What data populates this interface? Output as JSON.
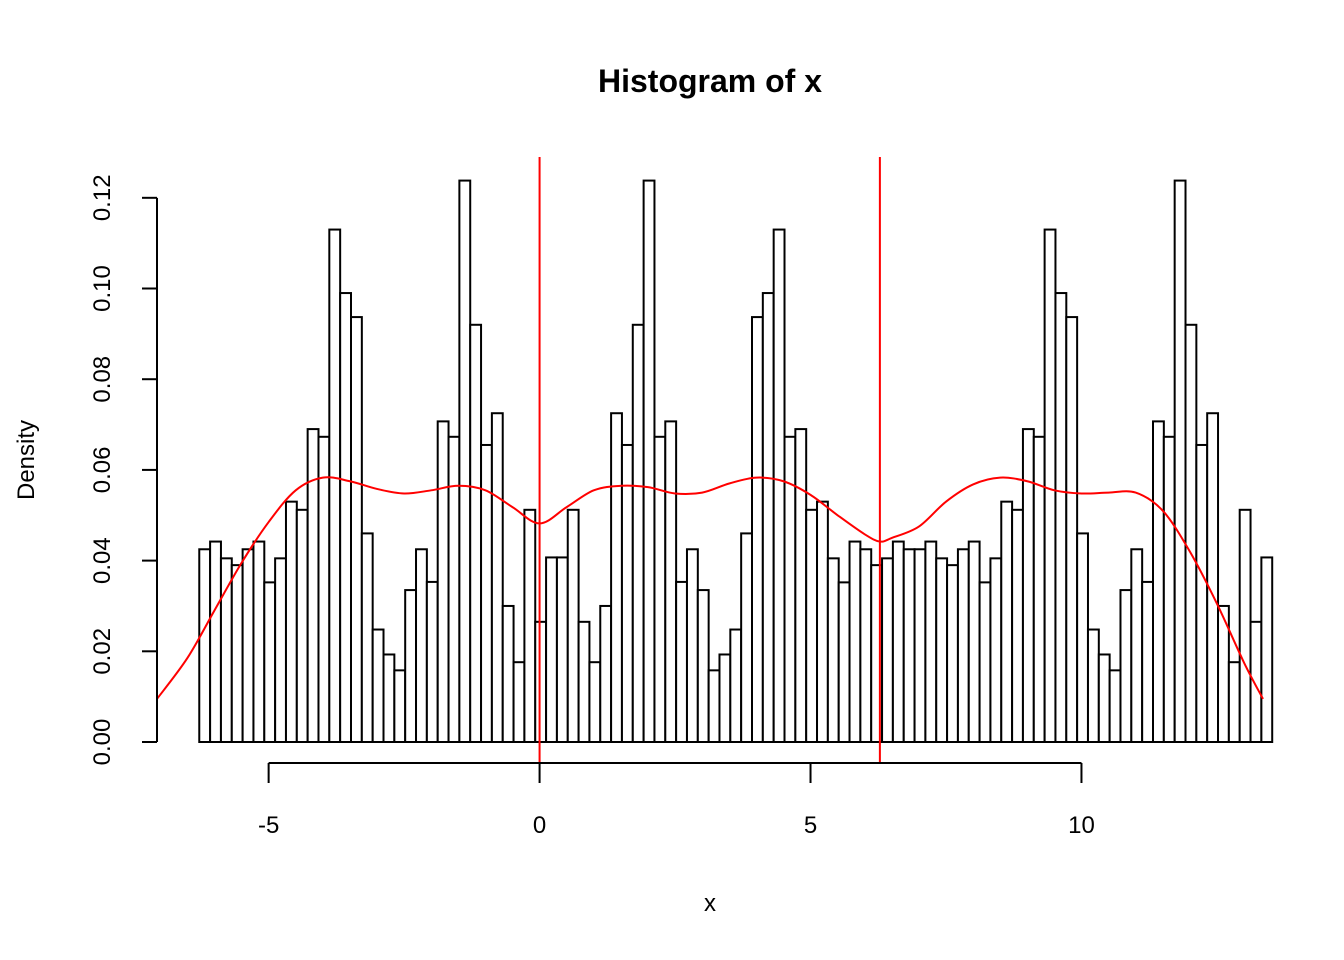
{
  "chart_data": {
    "type": "bar",
    "title": "Histogram of x",
    "xlabel": "x",
    "ylabel": "Density",
    "xlim": [
      -7.06,
      13.35
    ],
    "ylim": [
      0,
      0.129
    ],
    "x_ticks": [
      -5,
      0,
      5,
      10
    ],
    "x_tick_labels": [
      "-5",
      "0",
      "5",
      "10"
    ],
    "y_ticks": [
      0,
      0.02,
      0.04,
      0.06,
      0.08,
      0.1,
      0.12
    ],
    "y_tick_labels": [
      "0.00",
      "0.02",
      "0.04",
      "0.06",
      "0.08",
      "0.10",
      "0.12"
    ],
    "grid": false,
    "histogram": {
      "bin_start": -6.28,
      "bin_width": 0.2,
      "density": [
        0.0425,
        0.0442,
        0.0405,
        0.039,
        0.0425,
        0.0442,
        0.0352,
        0.0405,
        0.053,
        0.0512,
        0.069,
        0.0673,
        0.113,
        0.099,
        0.0937,
        0.046,
        0.0248,
        0.0193,
        0.0158,
        0.0335,
        0.0425,
        0.0353,
        0.0707,
        0.0673,
        0.1238,
        0.092,
        0.0655,
        0.0725,
        0.03,
        0.0176,
        0.0512,
        0.0265,
        0.0407,
        0.0407,
        0.0512,
        0.0265,
        0.0176,
        0.03,
        0.0725,
        0.0655,
        0.092,
        0.1238,
        0.0673,
        0.0707,
        0.0353,
        0.0425,
        0.0335,
        0.0158,
        0.0193,
        0.0248,
        0.046,
        0.0937,
        0.099,
        0.113,
        0.0673,
        0.069,
        0.0512,
        0.053,
        0.0405,
        0.0352,
        0.0442,
        0.0425,
        0.039,
        0.0405,
        0.0442,
        0.0425,
        0.0425,
        0.0442,
        0.0405,
        0.039,
        0.0425,
        0.0442,
        0.0352,
        0.0405,
        0.053,
        0.0512,
        0.069,
        0.0673,
        0.113,
        0.099,
        0.0937,
        0.046,
        0.0248,
        0.0193,
        0.0158,
        0.0335,
        0.0425,
        0.0353,
        0.0707,
        0.0673,
        0.1238,
        0.092,
        0.0655,
        0.0725,
        0.03,
        0.0176,
        0.0512,
        0.0265,
        0.0407
      ]
    },
    "density_curve": {
      "x": [
        -7.06,
        -6.5,
        -6.0,
        -5.5,
        -5.0,
        -4.5,
        -4.0,
        -3.5,
        -3.0,
        -2.5,
        -2.0,
        -1.5,
        -1.0,
        -0.5,
        0.0,
        0.5,
        1.0,
        1.5,
        2.0,
        2.5,
        3.0,
        3.5,
        4.0,
        4.5,
        5.0,
        5.5,
        6.0,
        6.28,
        6.5,
        7.0,
        7.5,
        8.0,
        8.5,
        9.0,
        9.5,
        10.0,
        10.5,
        11.0,
        11.5,
        12.0,
        12.5,
        13.0,
        13.35
      ],
      "y": [
        0.0095,
        0.0185,
        0.029,
        0.0395,
        0.0485,
        0.0555,
        0.0583,
        0.0575,
        0.0558,
        0.0548,
        0.0555,
        0.0565,
        0.0555,
        0.0518,
        0.0482,
        0.0518,
        0.0555,
        0.0565,
        0.0562,
        0.0548,
        0.055,
        0.057,
        0.0583,
        0.0575,
        0.0545,
        0.05,
        0.0458,
        0.0442,
        0.045,
        0.0475,
        0.053,
        0.0568,
        0.0583,
        0.0575,
        0.0555,
        0.0548,
        0.055,
        0.055,
        0.051,
        0.042,
        0.0305,
        0.0175,
        0.0095
      ]
    },
    "vertical_lines": [
      0,
      6.28
    ],
    "colors": {
      "bars_fill": "#ffffff",
      "bars_stroke": "#000000",
      "density": "#ff0000",
      "vlines": "#ff0000"
    }
  }
}
